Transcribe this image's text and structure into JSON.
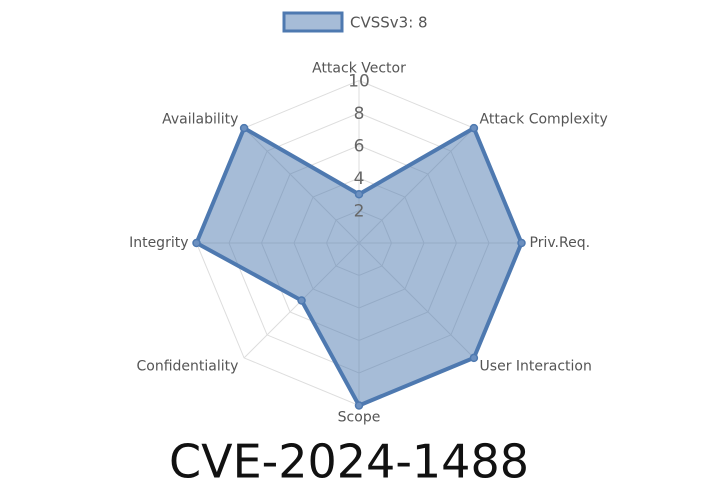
{
  "chart_data": {
    "type": "radar",
    "title": "CVE-2024-1488",
    "categories": [
      "Attack Vector",
      "Attack Complexity",
      "Priv.Req.",
      "User Interaction",
      "Scope",
      "Confidentiality",
      "Integrity",
      "Availability"
    ],
    "series": [
      {
        "name": "CVSSv3: 8",
        "color": "#4e79b0",
        "values": [
          3,
          10,
          10,
          10,
          10,
          5,
          10,
          10
        ]
      }
    ],
    "rlim": [
      0,
      10
    ],
    "rticks": [
      2,
      4,
      6,
      8,
      10
    ],
    "grid": true,
    "legend": "top"
  }
}
